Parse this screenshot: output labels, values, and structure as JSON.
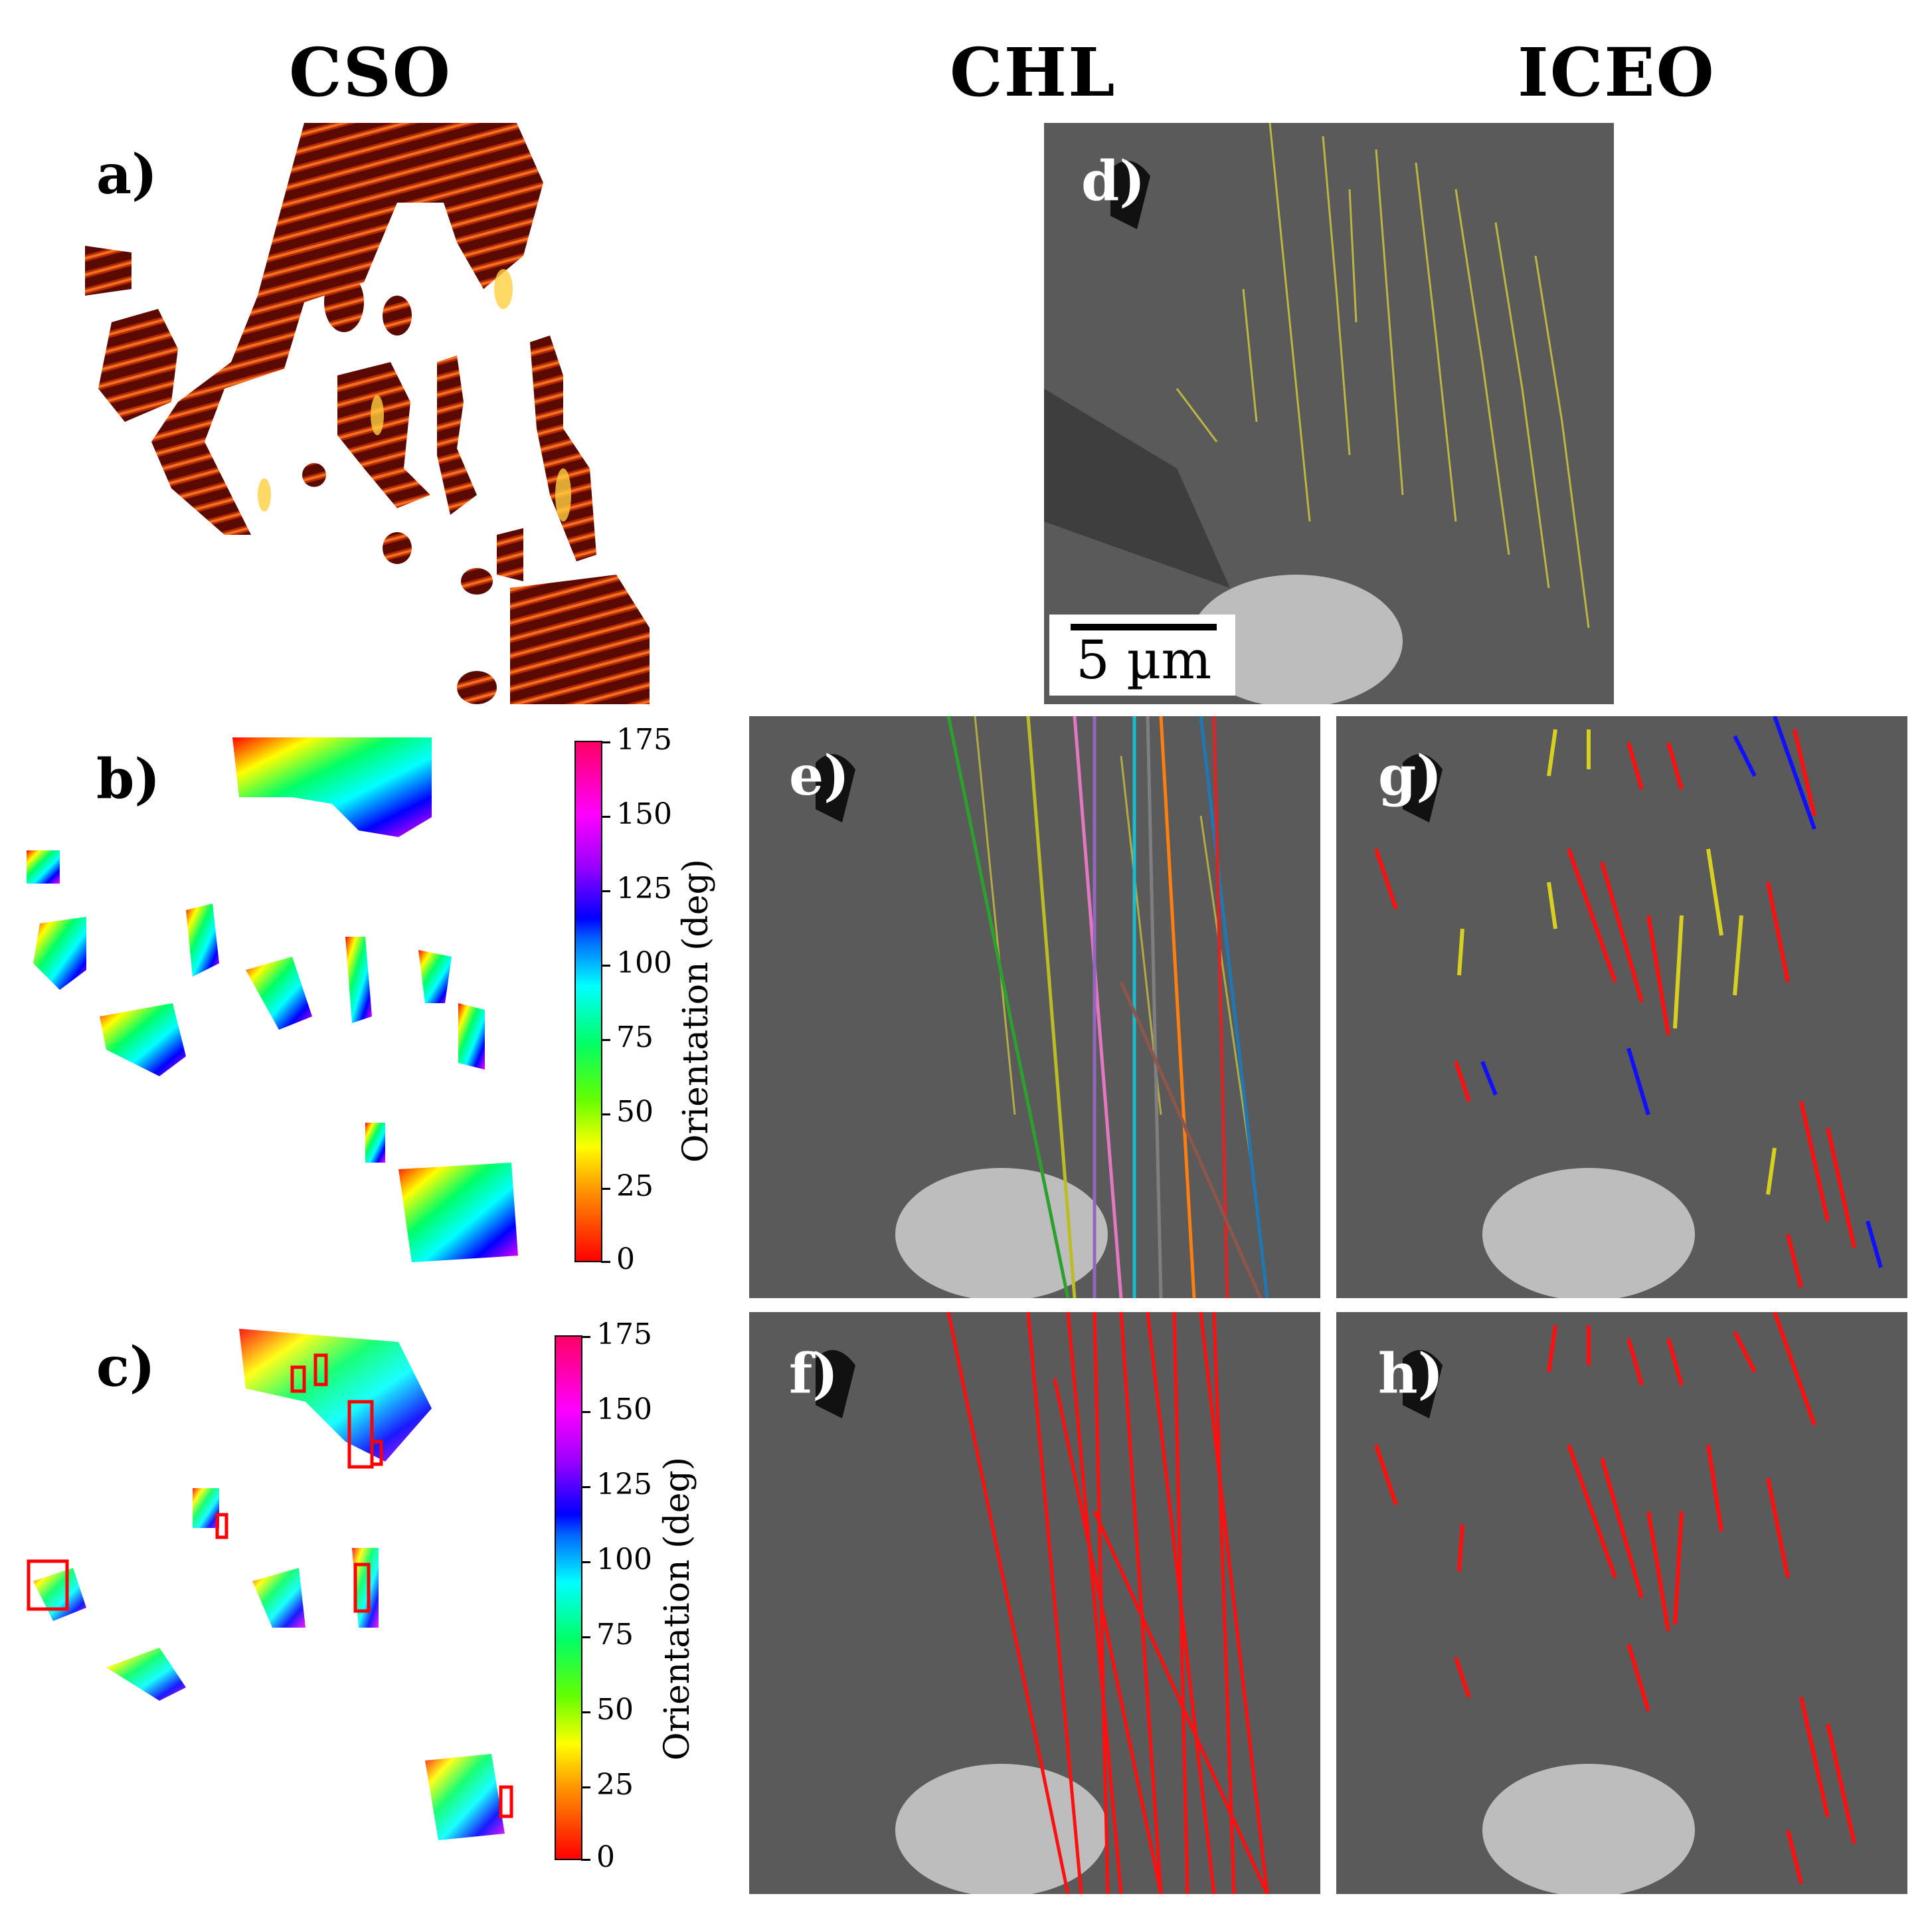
{
  "headers": {
    "cso": "CSO",
    "chl": "CHL",
    "iceo": "ICEO"
  },
  "panels": {
    "a": "a)",
    "b": "b)",
    "c": "c)",
    "d": "d)",
    "e": "e)",
    "f": "f)",
    "g": "g)",
    "h": "h)"
  },
  "scale_bar": "5 µm",
  "colorbar": {
    "label": "Orientation (deg)",
    "ticks": [
      "175",
      "150",
      "125",
      "100",
      "75",
      "50",
      "25",
      "0"
    ]
  },
  "colors": {
    "fiber_outline": "#c8c040",
    "fit_red": "#ff1010",
    "fit_yellow": "#d8d020",
    "fit_blue": "#1010ff",
    "sem_gray": "#5a5a5a"
  }
}
